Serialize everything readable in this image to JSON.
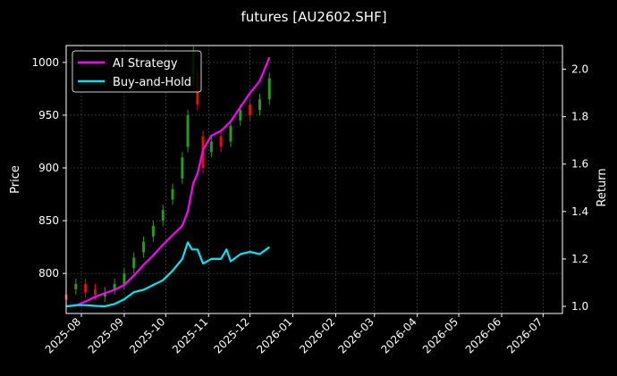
{
  "chart_data": {
    "type": "line",
    "title": "futures [AU2602.SHF]",
    "ylabel": "Price",
    "ylabel_right": "Return",
    "x_ticks": [
      "2025-08",
      "2025-09",
      "2025-10",
      "2025-11",
      "2025-12",
      "2026-01",
      "2026-02",
      "2026-03",
      "2026-04",
      "2026-05",
      "2026-06",
      "2026-07"
    ],
    "xlim": [
      "2025-07-21",
      "2026-07-15"
    ],
    "ylim": [
      762,
      1016
    ],
    "y_ticks": [
      800,
      850,
      900,
      950,
      1000
    ],
    "ylim_right": [
      0.97,
      2.1
    ],
    "y_ticks_right": [
      1.0,
      1.2,
      1.4,
      1.6,
      1.8,
      2.0
    ],
    "grid": true,
    "legend_position": "top-left",
    "colors": {
      "strategy": "#ff00ff",
      "buyhold": "#00e5f0",
      "up": "#2a9a1e",
      "down": "#e01010",
      "grid": "#555555",
      "axis": "#ffffff"
    },
    "series": [
      {
        "name": "AI Strategy",
        "axis": "right",
        "points": [
          [
            "2025-07-21",
            1.0
          ],
          [
            "2025-07-28",
            1.003
          ],
          [
            "2025-08-04",
            1.02
          ],
          [
            "2025-08-11",
            1.04
          ],
          [
            "2025-08-18",
            1.055
          ],
          [
            "2025-08-25",
            1.07
          ],
          [
            "2025-09-01",
            1.09
          ],
          [
            "2025-09-08",
            1.13
          ],
          [
            "2025-09-15",
            1.175
          ],
          [
            "2025-09-22",
            1.215
          ],
          [
            "2025-09-29",
            1.26
          ],
          [
            "2025-10-06",
            1.3
          ],
          [
            "2025-10-13",
            1.34
          ],
          [
            "2025-10-17",
            1.4
          ],
          [
            "2025-10-21",
            1.52
          ],
          [
            "2025-10-24",
            1.56
          ],
          [
            "2025-10-28",
            1.66
          ],
          [
            "2025-11-03",
            1.72
          ],
          [
            "2025-11-10",
            1.74
          ],
          [
            "2025-11-17",
            1.78
          ],
          [
            "2025-11-24",
            1.84
          ],
          [
            "2025-12-01",
            1.9
          ],
          [
            "2025-12-08",
            1.95
          ],
          [
            "2025-12-15",
            2.05
          ]
        ]
      },
      {
        "name": "Buy-and-Hold",
        "axis": "right",
        "points": [
          [
            "2025-07-21",
            1.0
          ],
          [
            "2025-07-28",
            1.005
          ],
          [
            "2025-08-04",
            1.005
          ],
          [
            "2025-08-11",
            1.002
          ],
          [
            "2025-08-18",
            1.0
          ],
          [
            "2025-08-25",
            1.01
          ],
          [
            "2025-09-01",
            1.03
          ],
          [
            "2025-09-08",
            1.06
          ],
          [
            "2025-09-15",
            1.07
          ],
          [
            "2025-09-22",
            1.09
          ],
          [
            "2025-09-29",
            1.11
          ],
          [
            "2025-10-06",
            1.15
          ],
          [
            "2025-10-13",
            1.2
          ],
          [
            "2025-10-17",
            1.27
          ],
          [
            "2025-10-20",
            1.24
          ],
          [
            "2025-10-24",
            1.24
          ],
          [
            "2025-10-28",
            1.18
          ],
          [
            "2025-11-03",
            1.2
          ],
          [
            "2025-11-10",
            1.2
          ],
          [
            "2025-11-14",
            1.24
          ],
          [
            "2025-11-17",
            1.19
          ],
          [
            "2025-11-24",
            1.22
          ],
          [
            "2025-12-01",
            1.23
          ],
          [
            "2025-12-08",
            1.22
          ],
          [
            "2025-12-15",
            1.25
          ]
        ]
      }
    ],
    "candles": [
      [
        "2025-07-21",
        780,
        775
      ],
      [
        "2025-07-28",
        785,
        790
      ],
      [
        "2025-08-04",
        790,
        782
      ],
      [
        "2025-08-11",
        785,
        780
      ],
      [
        "2025-08-18",
        778,
        782
      ],
      [
        "2025-08-25",
        785,
        790
      ],
      [
        "2025-09-01",
        790,
        800
      ],
      [
        "2025-09-08",
        805,
        815
      ],
      [
        "2025-09-15",
        820,
        830
      ],
      [
        "2025-09-22",
        835,
        845
      ],
      [
        "2025-09-29",
        850,
        860
      ],
      [
        "2025-10-06",
        870,
        880
      ],
      [
        "2025-10-13",
        890,
        910
      ],
      [
        "2025-10-17",
        920,
        950
      ],
      [
        "2025-10-21",
        980,
        1010
      ],
      [
        "2025-10-24",
        990,
        960
      ],
      [
        "2025-10-28",
        930,
        900
      ],
      [
        "2025-11-03",
        915,
        925
      ],
      [
        "2025-11-10",
        930,
        920
      ],
      [
        "2025-11-17",
        925,
        940
      ],
      [
        "2025-11-24",
        945,
        955
      ],
      [
        "2025-12-01",
        960,
        950
      ],
      [
        "2025-12-08",
        955,
        965
      ],
      [
        "2025-12-15",
        965,
        985
      ]
    ]
  }
}
